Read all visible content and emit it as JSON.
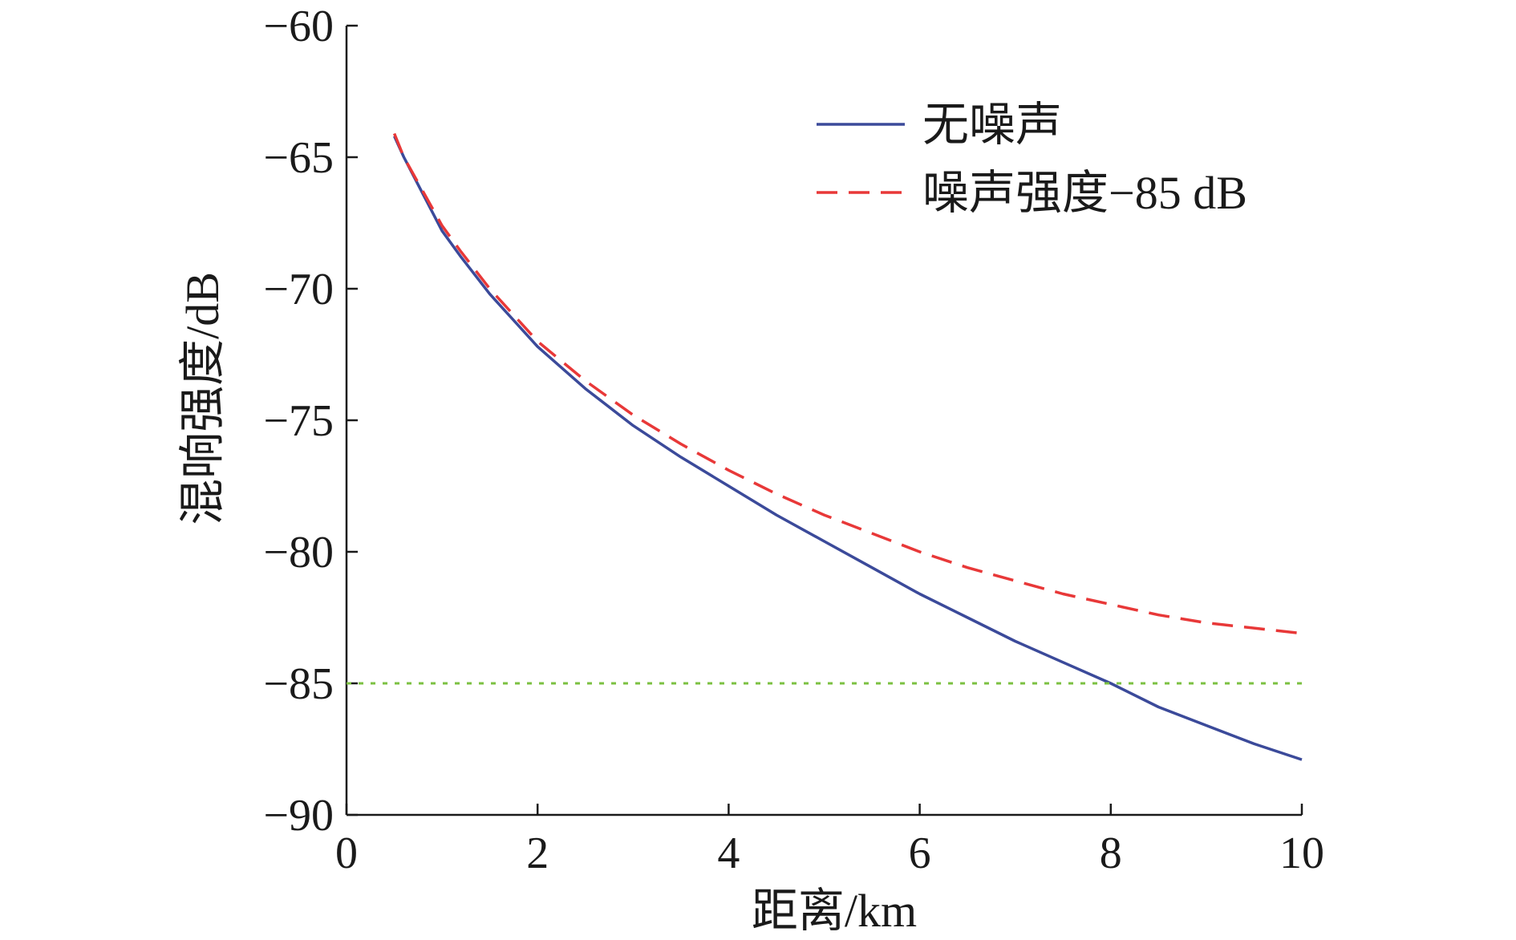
{
  "chart_data": {
    "type": "line",
    "xlabel": "距离/km",
    "ylabel": "混响强度/dB",
    "xlim": [
      0,
      10
    ],
    "ylim": [
      -90,
      -60
    ],
    "xticks": [
      0,
      2,
      4,
      6,
      8,
      10
    ],
    "yticks": [
      -60,
      -65,
      -70,
      -75,
      -80,
      -85,
      -90
    ],
    "xtick_labels": [
      "0",
      "2",
      "4",
      "6",
      "8",
      "10"
    ],
    "ytick_labels": [
      "−60",
      "−65",
      "−70",
      "−75",
      "−80",
      "−85",
      "−90"
    ],
    "grid": false,
    "legend_position": "top-right",
    "series": [
      {
        "name": "无噪声",
        "color": "#3b4a9a",
        "style": "solid",
        "x": [
          0.5,
          0.6,
          0.8,
          1.0,
          1.2,
          1.5,
          2.0,
          2.5,
          3.0,
          3.5,
          4.0,
          4.5,
          5.0,
          5.5,
          6.0,
          6.5,
          7.0,
          7.5,
          8.0,
          8.5,
          9.0,
          9.5,
          10.0
        ],
        "y": [
          -64.2,
          -65.0,
          -66.4,
          -67.8,
          -68.8,
          -70.2,
          -72.2,
          -73.8,
          -75.2,
          -76.4,
          -77.5,
          -78.6,
          -79.6,
          -80.6,
          -81.6,
          -82.5,
          -83.4,
          -84.2,
          -85.0,
          -85.9,
          -86.6,
          -87.3,
          -87.9
        ]
      },
      {
        "name": "噪声强度−85 dB",
        "color": "#e83838",
        "style": "dashed",
        "x": [
          0.5,
          0.6,
          0.8,
          1.0,
          1.2,
          1.5,
          2.0,
          2.5,
          3.0,
          3.5,
          4.0,
          4.5,
          5.0,
          5.5,
          6.0,
          6.5,
          7.0,
          7.5,
          8.0,
          8.5,
          9.0,
          9.5,
          10.0
        ],
        "y": [
          -64.1,
          -65.0,
          -66.3,
          -67.6,
          -68.6,
          -70.0,
          -72.0,
          -73.5,
          -74.8,
          -75.9,
          -76.9,
          -77.8,
          -78.6,
          -79.3,
          -80.0,
          -80.6,
          -81.1,
          -81.6,
          -82.0,
          -82.4,
          -82.7,
          -82.9,
          -83.1
        ]
      },
      {
        "name": "",
        "color": "#7cc142",
        "style": "dotted",
        "x": [
          0,
          10
        ],
        "y": [
          -85,
          -85
        ]
      }
    ]
  }
}
